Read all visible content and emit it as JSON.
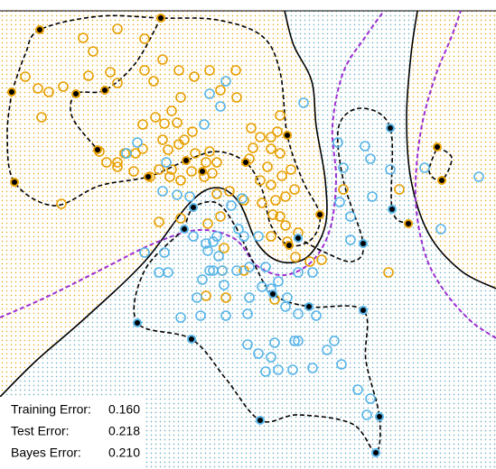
{
  "chart_data": {
    "type": "scatter",
    "xlim": [
      0,
      549
    ],
    "ylim": [
      520,
      12
    ],
    "series": [
      {
        "color": "#e69f00",
        "filled": false,
        "x": [
          92,
          103,
          130,
          160,
          28,
          42,
          54,
          70,
          46,
          98,
          122,
          130,
          160,
          170,
          180,
          198,
          200,
          190,
          215,
          232,
          261,
          244,
          262,
          172,
          182,
          158,
          196,
          204,
          198,
          180,
          186,
          213,
          216,
          228,
          240,
          232,
          235,
          212,
          200,
          188,
          176,
          166,
          148,
          130,
          118,
          110,
          138,
          158,
          150,
          226,
          240,
          254,
          278,
          288,
          300,
          307,
          310,
          280,
          276,
          310,
          300,
          296,
          312,
          322,
          316,
          300,
          326,
          305,
          290,
          288,
          310,
          302,
          270,
          300,
          316,
          330,
          318,
          327,
          343,
          356,
          176,
          200,
          230,
          244,
          248,
          246,
          228,
          250,
          304,
          270,
          380,
          442,
          430,
          68,
          190,
          130
        ],
        "values": [
          42,
          57,
          32,
          43,
          85,
          98,
          102,
          96,
          130,
          84,
          80,
          92,
          78,
          90,
          66,
          78,
          108,
          123,
          85,
          78,
          78,
          100,
          108,
          130,
          137,
          138,
          136,
          155,
          160,
          155,
          166,
          146,
          170,
          180,
          180,
          168,
          192,
          190,
          200,
          196,
          188,
          196,
          190,
          180,
          180,
          168,
          170,
          165,
          170,
          196,
          215,
          212,
          142,
          152,
          152,
          146,
          128,
          164,
          176,
          170,
          165,
          185,
          195,
          188,
          218,
          205,
          210,
          222,
          225,
          200,
          240,
          238,
          222,
          262,
          250,
          258,
          268,
          285,
          290,
          288,
          246,
          242,
          248,
          240,
          275,
          300,
          328,
          330,
          332,
          300,
          210,
          210,
          302,
          226,
          188,
          185
        ]
      },
      {
        "color": "#56b4e9",
        "filled": false,
        "x": [
          140,
          152,
          184,
          226,
          244,
          232,
          250,
          336,
          210,
          196,
          180,
          214,
          228,
          236,
          240,
          230,
          232,
          236,
          246,
          242,
          186,
          160,
          182,
          176,
          224,
          218,
          248,
          276,
          262,
          276,
          286,
          270,
          294,
          290,
          300,
          318,
          330,
          346,
          308,
          200,
          222,
          250,
          274,
          316,
          330,
          350,
          274,
          286,
          300,
          304,
          326,
          330,
          370,
          362,
          378,
          294,
          308,
          324,
          346,
          396,
          410,
          406,
          374,
          380,
          404,
          410,
          376,
          388,
          388,
          412,
          432,
          488,
          530,
          470,
          264,
          268,
          256
        ],
        "values": [
          170,
          158,
          180,
          138,
          118,
          104,
          90,
          114,
          218,
          216,
          212,
          262,
          270,
          268,
          262,
          278,
          300,
          300,
          300,
          284,
          302,
          280,
          280,
          302,
          310,
          330,
          316,
          330,
          300,
          296,
          262,
          262,
          296,
          318,
          320,
          330,
          302,
          302,
          312,
          352,
          350,
          350,
          348,
          340,
          348,
          350,
          382,
          392,
          396,
          380,
          378,
          378,
          378,
          388,
          404,
          412,
          410,
          410,
          408,
          432,
          442,
          460,
          158,
          186,
          162,
          176,
          224,
          240,
          266,
          218,
          188,
          254,
          196,
          186,
          254,
          220,
          228
        ]
      },
      {
        "color": "#e69f00",
        "filled": true,
        "x": [
          178,
          44,
          13,
          116,
          84,
          16,
          108,
          164,
          206,
          272,
          224,
          318,
          354,
          320,
          484,
          489,
          452
        ],
        "values": [
          20,
          33,
          102,
          100,
          104,
          202,
          166,
          196,
          178,
          180,
          190,
          150,
          238,
          272,
          163,
          200,
          248
        ]
      },
      {
        "color": "#56b4e9",
        "filled": true,
        "x": [
          204,
          214,
          152,
          212,
          288,
          302,
          342,
          402,
          402,
          420,
          416,
          432,
          434,
          330
        ],
        "values": [
          254,
          230,
          358,
          376,
          466,
          326,
          340,
          344,
          270,
          462,
          502,
          142,
          232,
          264
        ]
      }
    ],
    "lines": [
      {
        "color": "#000000",
        "dash": false,
        "boundary": true,
        "x": [
          0,
          40,
          95,
          160,
          210,
          240,
          265,
          285,
          310,
          340,
          360,
          360,
          350,
          345,
          325,
          315
        ],
        "values": [
          440,
          400,
          352,
          290,
          225,
          208,
          225,
          270,
          290,
          285,
          250,
          200,
          140,
          90,
          50,
          12
        ]
      },
      {
        "color": "#000000",
        "dash": false,
        "boundary": true,
        "x": [
          462,
          455,
          450,
          455,
          475,
          510,
          549
        ],
        "values": [
          12,
          60,
          130,
          200,
          260,
          300,
          320
        ]
      },
      {
        "color": "#9b30d0",
        "dash": true,
        "boundary": false,
        "x": [
          0,
          50,
          110,
          170,
          220,
          260,
          285,
          315,
          345,
          365,
          372,
          368,
          380,
          405,
          425
        ],
        "values": [
          352,
          330,
          300,
          270,
          255,
          265,
          295,
          305,
          290,
          255,
          200,
          140,
          80,
          40,
          12
        ]
      },
      {
        "color": "#9b30d0",
        "dash": true,
        "boundary": false,
        "x": [
          549,
          520,
          490,
          470,
          460,
          465,
          480,
          500,
          510
        ],
        "values": [
          375,
          355,
          320,
          280,
          220,
          150,
          90,
          40,
          12
        ]
      },
      {
        "color": "#000000",
        "dash": true,
        "boundary": false,
        "x": [
          13,
          28,
          44,
          110,
          178,
          240,
          290,
          310,
          318,
          335,
          354,
          345,
          320,
          300,
          290,
          272,
          240,
          206,
          164,
          110,
          60,
          16,
          8,
          13
        ],
        "values": [
          102,
          60,
          33,
          18,
          20,
          22,
          40,
          80,
          150,
          200,
          238,
          265,
          272,
          250,
          210,
          180,
          168,
          178,
          196,
          206,
          228,
          202,
          150,
          102
        ]
      },
      {
        "color": "#000000",
        "dash": true,
        "boundary": false,
        "x": [
          178,
          150,
          116,
          84,
          80,
          108
        ],
        "values": [
          20,
          70,
          100,
          104,
          130,
          166
        ]
      },
      {
        "color": "#000000",
        "dash": true,
        "boundary": false,
        "x": [
          484,
          500,
          489,
          475,
          484
        ],
        "values": [
          163,
          175,
          200,
          190,
          163
        ]
      },
      {
        "color": "#000000",
        "dash": true,
        "boundary": false,
        "x": [
          204,
          214,
          240,
          260,
          280,
          302,
          342,
          402,
          405,
          420,
          416,
          390,
          330,
          288,
          250,
          212,
          152,
          160,
          204
        ],
        "values": [
          254,
          230,
          225,
          250,
          290,
          326,
          340,
          344,
          400,
          462,
          502,
          470,
          460,
          466,
          420,
          376,
          358,
          300,
          254
        ]
      },
      {
        "color": "#000000",
        "dash": true,
        "boundary": false,
        "x": [
          330,
          360,
          390,
          402,
          380,
          375,
          400,
          432,
          434,
          452
        ],
        "values": [
          264,
          280,
          290,
          270,
          200,
          140,
          120,
          142,
          232,
          248
        ]
      }
    ],
    "errors": [
      {
        "label": "Training Error:",
        "value": "0.160"
      },
      {
        "label": "Test Error:",
        "value": "0.218"
      },
      {
        "label": "Bayes Error:",
        "value": "0.210"
      }
    ]
  }
}
